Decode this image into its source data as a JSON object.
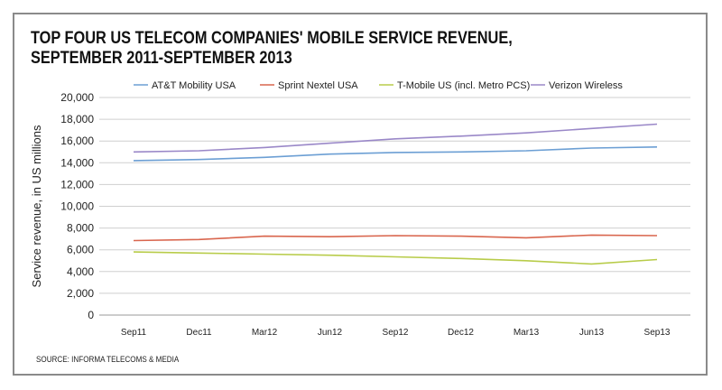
{
  "chart_data": {
    "type": "line",
    "title_line1": "TOP FOUR US TELECOM COMPANIES' MOBILE SERVICE REVENUE,",
    "title_line2": "SEPTEMBER 2011-SEPTEMBER 2013",
    "xlabel": "",
    "ylabel": "Service revenue, in US millions",
    "categories": [
      "Sep11",
      "Dec11",
      "Mar12",
      "Jun12",
      "Sep12",
      "Dec12",
      "Mar13",
      "Jun13",
      "Sep13"
    ],
    "ylim": [
      0,
      20000
    ],
    "yticks": [
      0,
      2000,
      4000,
      6000,
      8000,
      10000,
      12000,
      14000,
      16000,
      18000,
      20000
    ],
    "ytick_labels": [
      "0",
      "2,000",
      "4,000",
      "6,000",
      "8,000",
      "10,000",
      "12,000",
      "14,000",
      "16,000",
      "18,000",
      "20,000"
    ],
    "grid": true,
    "legend_position": "top",
    "series": [
      {
        "name": "AT&T Mobility USA",
        "color": "#6c9fd4",
        "values": [
          14200,
          14300,
          14500,
          14800,
          14950,
          15000,
          15100,
          15350,
          15450
        ]
      },
      {
        "name": "Sprint Nextel USA",
        "color": "#d9664e",
        "values": [
          6850,
          6950,
          7250,
          7200,
          7300,
          7250,
          7100,
          7350,
          7300
        ]
      },
      {
        "name": "T-Mobile US (incl. Metro PCS)",
        "color": "#b8cc4a",
        "values": [
          5800,
          5700,
          5600,
          5500,
          5350,
          5200,
          5000,
          4700,
          5100
        ]
      },
      {
        "name": "Verizon Wireless",
        "color": "#9a88c8",
        "values": [
          15000,
          15100,
          15400,
          15800,
          16200,
          16450,
          16750,
          17150,
          17550
        ]
      }
    ],
    "source": "SOURCE: INFORMA TELECOMS & MEDIA"
  }
}
